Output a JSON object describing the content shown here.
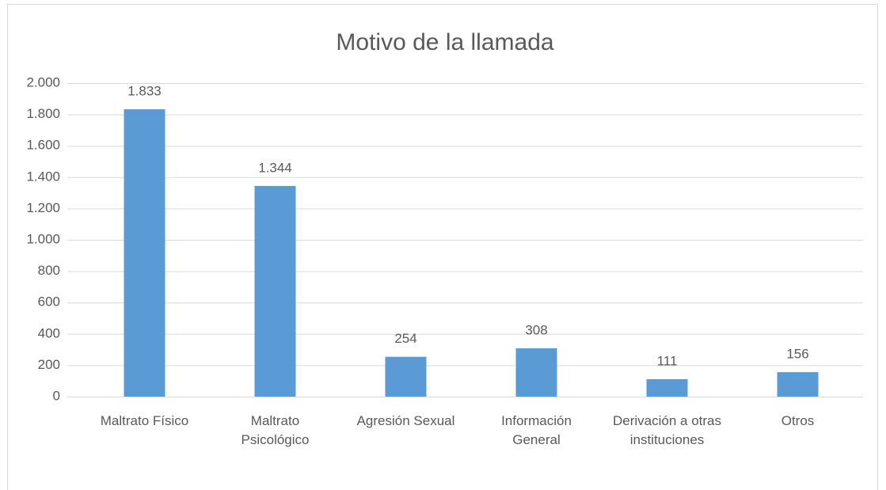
{
  "chart_data": {
    "type": "bar",
    "title": "Motivo de la llamada",
    "categories": [
      "Maltrato Físico",
      "Maltrato Psicológico",
      "Agresión Sexual",
      "Información General",
      "Derivación a otras instituciones",
      "Otros"
    ],
    "values": [
      1833,
      1344,
      254,
      308,
      111,
      156
    ],
    "value_labels": [
      "1.833",
      "1.344",
      "254",
      "308",
      "111",
      "156"
    ],
    "color": "#5b9bd5",
    "ylim": [
      0,
      2000
    ],
    "yticks": [
      0,
      200,
      400,
      600,
      800,
      {
        "value": 1000,
        "label": "1.000"
      },
      {
        "value": 1200,
        "label": "1.200"
      },
      {
        "value": 1400,
        "label": "1.400"
      },
      {
        "value": 1600,
        "label": "1.600"
      },
      {
        "value": 1800,
        "label": "1.800"
      },
      {
        "value": 2000,
        "label": "2.000"
      }
    ],
    "grid": true
  }
}
